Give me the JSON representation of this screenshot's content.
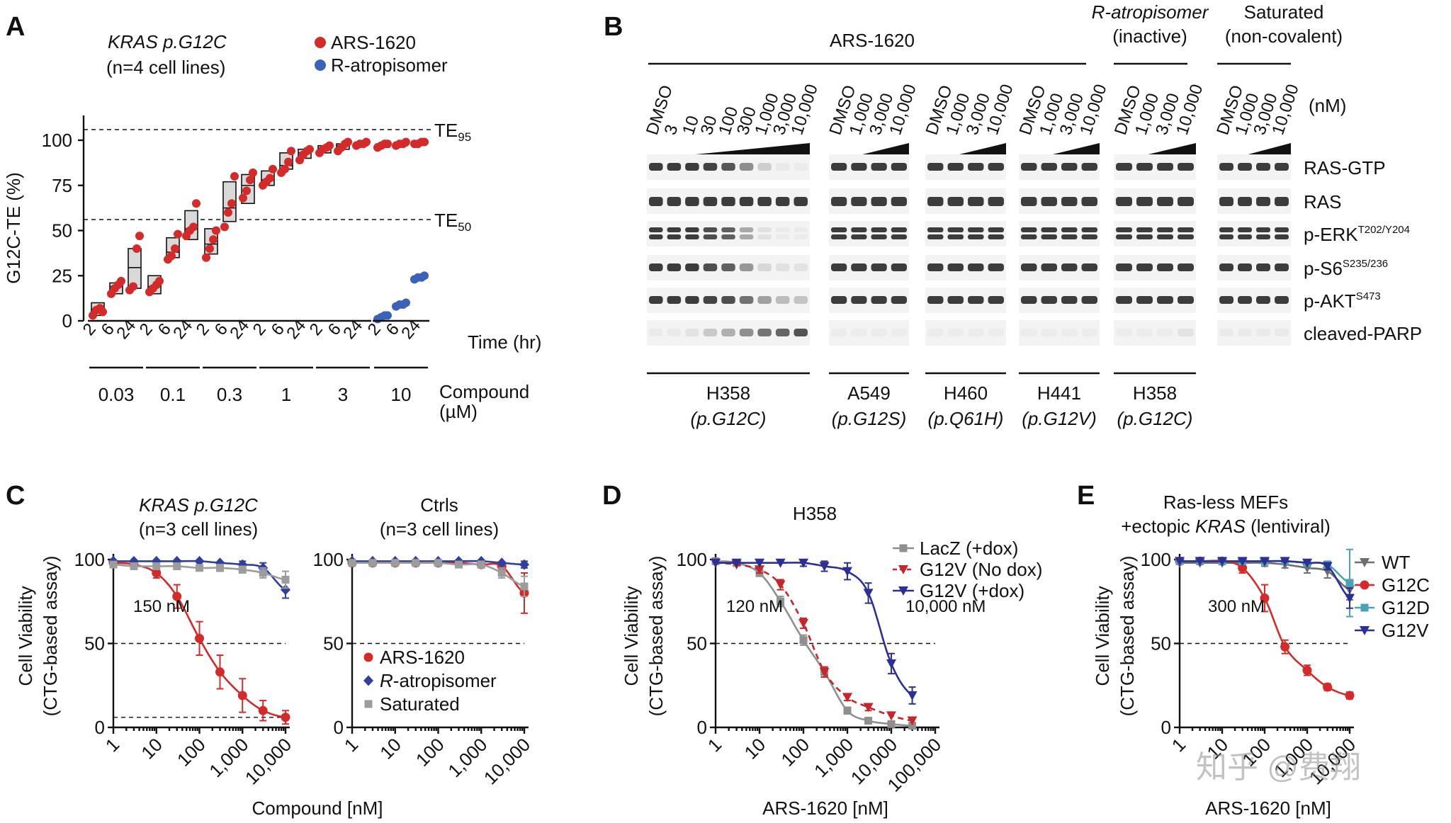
{
  "panel_labels": [
    "A",
    "B",
    "C",
    "D",
    "E"
  ],
  "colors": {
    "ars": "#d42a2a",
    "ratrop": "#3b62b8",
    "saturated": "#9c9c9c",
    "navy": "#2c2f96",
    "teal": "#4aa3b5",
    "wt": "#6e6e6e",
    "text": "#111111"
  },
  "panelA": {
    "title_line1": "KRAS p.G12C",
    "title_line2": "(n=4 cell lines)",
    "legend": [
      {
        "label": "ARS-1620",
        "color": "#d42a2a"
      },
      {
        "label": "R-atropisomer",
        "color": "#3b62b8"
      }
    ],
    "ylabel": "G12C-TE (%)",
    "yticks": [
      "0",
      "25",
      "50",
      "75",
      "100"
    ],
    "time_ticks": [
      "2",
      "6",
      "24"
    ],
    "time_label": "Time (hr)",
    "compound_label": "Compound",
    "compound_unit": "(µM)",
    "concentrations": [
      "0.03",
      "0.1",
      "0.3",
      "1",
      "3",
      "10"
    ],
    "te95": "TE95",
    "te50": "TE50"
  },
  "panelB": {
    "top_labels": [
      "ARS-1620",
      "R-atropisomer",
      "(inactive)",
      "Saturated",
      "(non-covalent)"
    ],
    "unit_label": "(nM)",
    "group_doses": [
      [
        "DMSO",
        "3",
        "10",
        "30",
        "100",
        "300",
        "1,000",
        "3,000",
        "10,000"
      ],
      [
        "DMSO",
        "1,000",
        "3,000",
        "10,000"
      ],
      [
        "DMSO",
        "1,000",
        "3,000",
        "10,000"
      ],
      [
        "DMSO",
        "1,000",
        "3,000",
        "10,000"
      ],
      [
        "DMSO",
        "1,000",
        "3,000",
        "10,000"
      ],
      [
        "DMSO",
        "1,000",
        "3,000",
        "10,000"
      ]
    ],
    "row_labels": [
      {
        "name": "RAS-GTP",
        "sup": ""
      },
      {
        "name": "RAS",
        "sup": ""
      },
      {
        "name": "p-ERK",
        "sup": "T202/Y204"
      },
      {
        "name": "p-S6",
        "sup": "S235/236"
      },
      {
        "name": "p-AKT",
        "sup": "S473"
      },
      {
        "name": "cleaved-PARP",
        "sup": ""
      }
    ],
    "bottom_labels": [
      {
        "line": "H358",
        "mut": "(p.G12C)"
      },
      {
        "line": "A549",
        "mut": "(p.G12S)"
      },
      {
        "line": "H460",
        "mut": "(p.Q61H)"
      },
      {
        "line": "H441",
        "mut": "(p.G12V)"
      },
      {
        "line": "H358",
        "mut": "(p.G12C)"
      }
    ]
  },
  "panelC": {
    "left_title_1": "KRAS p.G12C",
    "left_title_2": "(n=3 cell lines)",
    "right_title_1": "Ctrls",
    "right_title_2": "(n=3 cell lines)",
    "ylabel_1": "Cell Viability",
    "ylabel_2": "(CTG-based assay)",
    "xlabel": "Compound [nM]",
    "annotation": "150 nM",
    "xticks": [
      "1",
      "10",
      "100",
      "1,000",
      "10,000"
    ],
    "yticks": [
      "0",
      "50",
      "100"
    ],
    "legend": [
      "ARS-1620",
      "R-atropisomer",
      "Saturated"
    ]
  },
  "panelD": {
    "title": "H358",
    "ylabel_1": "Cell Viability",
    "ylabel_2": "(CTG-based assay)",
    "xlabel": "ARS-1620 [nM]",
    "xticks": [
      "1",
      "10",
      "100",
      "1,000",
      "10,000",
      "100,000"
    ],
    "yticks": [
      "0",
      "50",
      "100"
    ],
    "annotation_left": "120 nM",
    "annotation_right": "10,000 nM",
    "legend": [
      "LacZ (+dox)",
      "G12V (No dox)",
      "G12V (+dox)"
    ]
  },
  "panelE": {
    "title_1": "Ras-less MEFs",
    "title_2_pre": "+ectopic ",
    "title_2_gene": "KRAS",
    "title_2_post": " (lentiviral)",
    "ylabel_1": "Cell Viability",
    "ylabel_2": "(CTG-based assay)",
    "xlabel": "ARS-1620 [nM]",
    "xticks": [
      "1",
      "10",
      "100",
      "1,000",
      "10,000"
    ],
    "yticks": [
      "0",
      "50",
      "100"
    ],
    "annotation": "300 nM",
    "legend": [
      "WT",
      "G12C",
      "G12D",
      "G12V"
    ]
  },
  "watermark": "知乎 @费翔",
  "chart_data": [
    {
      "type": "scatter",
      "panel": "A",
      "ylabel": "G12C-TE (%)",
      "xlabel": "Time (hr)",
      "ylim": [
        0,
        100
      ],
      "series": [
        {
          "name": "ARS-1620",
          "groups": [
            {
              "conc_uM": 0.03,
              "time_hr": 2,
              "points": [
                3,
                6,
                7,
                5
              ],
              "box": [
                3,
                10
              ]
            },
            {
              "conc_uM": 0.03,
              "time_hr": 6,
              "points": [
                15,
                18,
                20,
                22
              ],
              "box": [
                15,
                21
              ]
            },
            {
              "conc_uM": 0.03,
              "time_hr": 24,
              "points": [
                17,
                19,
                40,
                47
              ],
              "box": [
                18,
                40
              ]
            },
            {
              "conc_uM": 0.1,
              "time_hr": 2,
              "points": [
                16,
                18,
                20,
                22
              ],
              "box": [
                15,
                25
              ]
            },
            {
              "conc_uM": 0.1,
              "time_hr": 6,
              "points": [
                34,
                36,
                40,
                48
              ],
              "box": [
                35,
                46
              ]
            },
            {
              "conc_uM": 0.1,
              "time_hr": 24,
              "points": [
                47,
                50,
                52,
                65
              ],
              "box": [
                45,
                61
              ]
            },
            {
              "conc_uM": 0.3,
              "time_hr": 2,
              "points": [
                35,
                40,
                45,
                50
              ],
              "box": [
                37,
                51
              ]
            },
            {
              "conc_uM": 0.3,
              "time_hr": 6,
              "points": [
                52,
                60,
                65,
                80
              ],
              "box": [
                55,
                77
              ]
            },
            {
              "conc_uM": 0.3,
              "time_hr": 24,
              "points": [
                68,
                72,
                78,
                82
              ],
              "box": [
                65,
                81
              ]
            },
            {
              "conc_uM": 1,
              "time_hr": 2,
              "points": [
                75,
                77,
                79,
                84
              ],
              "box": [
                75,
                83
              ]
            },
            {
              "conc_uM": 1,
              "time_hr": 6,
              "points": [
                82,
                84,
                88,
                94
              ],
              "box": [
                84,
                93
              ]
            },
            {
              "conc_uM": 1,
              "time_hr": 24,
              "points": [
                89,
                92,
                94,
                95
              ],
              "box": [
                90,
                95
              ]
            },
            {
              "conc_uM": 3,
              "time_hr": 2,
              "points": [
                93,
                95,
                96,
                97
              ],
              "box": [
                93,
                97
              ]
            },
            {
              "conc_uM": 3,
              "time_hr": 6,
              "points": [
                94,
                96,
                98,
                99
              ],
              "box": [
                95,
                98
              ]
            },
            {
              "conc_uM": 3,
              "time_hr": 24,
              "points": [
                97,
                98,
                98,
                99
              ],
              "box": [
                97,
                99
              ]
            },
            {
              "conc_uM": 10,
              "time_hr": 2,
              "points": [
                96,
                97,
                98,
                98
              ],
              "box": [
                96,
                98
              ]
            },
            {
              "conc_uM": 10,
              "time_hr": 6,
              "points": [
                97,
                98,
                98,
                99
              ],
              "box": [
                97,
                99
              ]
            },
            {
              "conc_uM": 10,
              "time_hr": 24,
              "points": [
                98,
                98,
                99,
                99
              ],
              "box": [
                98,
                99
              ]
            }
          ]
        },
        {
          "name": "R-atropisomer",
          "groups": [
            {
              "conc_uM": 10,
              "time_hr": 2,
              "points": [
                1,
                2,
                3,
                3
              ]
            },
            {
              "conc_uM": 10,
              "time_hr": 6,
              "points": [
                8,
                9,
                9,
                10
              ]
            },
            {
              "conc_uM": 10,
              "time_hr": 24,
              "points": [
                23,
                24,
                24,
                25
              ]
            }
          ]
        }
      ],
      "reference_lines": {
        "TE95": 95,
        "TE50": 50
      }
    },
    {
      "type": "line",
      "panel": "C-left",
      "xlabel": "Compound [nM]",
      "ylabel": "Cell Viability (CTG-based assay)",
      "xscale": "log",
      "xlim": [
        1,
        10000
      ],
      "ylim": [
        0,
        100
      ],
      "series": [
        {
          "name": "ARS-1620",
          "x": [
            1,
            3,
            10,
            30,
            100,
            300,
            1000,
            3000,
            10000
          ],
          "y": [
            98,
            97,
            92,
            78,
            53,
            33,
            19,
            10,
            6
          ],
          "err": [
            1,
            2,
            3,
            7,
            10,
            10,
            10,
            6,
            4
          ]
        },
        {
          "name": "R-atropisomer",
          "x": [
            1,
            3,
            10,
            30,
            100,
            300,
            1000,
            3000,
            10000
          ],
          "y": [
            99,
            99,
            99,
            99,
            99,
            98,
            97,
            95,
            82
          ],
          "err": [
            1,
            1,
            1,
            1,
            1,
            1,
            2,
            3,
            5
          ]
        },
        {
          "name": "Saturated",
          "x": [
            1,
            3,
            10,
            30,
            100,
            300,
            1000,
            3000,
            10000
          ],
          "y": [
            97,
            96,
            96,
            96,
            95,
            95,
            94,
            92,
            88
          ],
          "err": [
            1,
            1,
            1,
            1,
            1,
            2,
            2,
            3,
            5
          ]
        }
      ]
    },
    {
      "type": "line",
      "panel": "C-right",
      "xscale": "log",
      "xlim": [
        1,
        10000
      ],
      "ylim": [
        0,
        100
      ],
      "series": [
        {
          "name": "ARS-1620",
          "x": [
            1,
            3,
            10,
            30,
            100,
            300,
            1000,
            3000,
            10000
          ],
          "y": [
            98,
            98,
            98,
            98,
            98,
            98,
            97,
            96,
            80
          ],
          "err": [
            1,
            1,
            1,
            1,
            1,
            1,
            1,
            2,
            12
          ]
        },
        {
          "name": "R-atropisomer",
          "x": [
            1,
            3,
            10,
            30,
            100,
            300,
            1000,
            3000,
            10000
          ],
          "y": [
            99,
            99,
            99,
            99,
            99,
            99,
            99,
            98,
            97
          ],
          "err": [
            1,
            1,
            1,
            1,
            1,
            1,
            1,
            1,
            2
          ]
        },
        {
          "name": "Saturated",
          "x": [
            1,
            3,
            10,
            30,
            100,
            300,
            1000,
            3000,
            10000
          ],
          "y": [
            98,
            98,
            98,
            98,
            98,
            97,
            97,
            92,
            84
          ],
          "err": [
            1,
            1,
            1,
            1,
            1,
            1,
            2,
            3,
            6
          ]
        }
      ]
    },
    {
      "type": "line",
      "panel": "D",
      "title": "H358",
      "xlabel": "ARS-1620 [nM]",
      "ylabel": "Cell Viability (CTG-based assay)",
      "xscale": "log",
      "xlim": [
        1,
        100000
      ],
      "ylim": [
        0,
        100
      ],
      "series": [
        {
          "name": "LacZ (+dox)",
          "x": [
            1,
            3,
            10,
            30,
            100,
            300,
            1000,
            3000,
            10000,
            30000
          ],
          "y": [
            99,
            98,
            92,
            75,
            52,
            33,
            10,
            4,
            2,
            1
          ],
          "err": [
            1,
            1,
            2,
            3,
            3,
            3,
            2,
            1,
            1,
            1
          ]
        },
        {
          "name": "G12V (No dox)",
          "x": [
            1,
            3,
            10,
            30,
            100,
            300,
            1000,
            3000,
            10000,
            30000
          ],
          "y": [
            98,
            97,
            94,
            85,
            62,
            33,
            18,
            12,
            7,
            4
          ],
          "err": [
            1,
            1,
            2,
            3,
            3,
            3,
            2,
            2,
            1,
            1
          ]
        },
        {
          "name": "G12V (+dox)",
          "x": [
            1,
            3,
            10,
            30,
            100,
            300,
            1000,
            3000,
            10000,
            30000
          ],
          "y": [
            98,
            98,
            98,
            98,
            98,
            96,
            93,
            80,
            38,
            19
          ],
          "err": [
            1,
            1,
            1,
            1,
            2,
            3,
            5,
            6,
            6,
            5
          ]
        }
      ]
    },
    {
      "type": "line",
      "panel": "E",
      "title": "Ras-less MEFs +ectopic KRAS (lentiviral)",
      "xlabel": "ARS-1620 [nM]",
      "ylabel": "Cell Viability (CTG-based assay)",
      "xscale": "log",
      "xlim": [
        1,
        10000
      ],
      "ylim": [
        0,
        100
      ],
      "series": [
        {
          "name": "WT",
          "x": [
            1,
            3,
            10,
            30,
            100,
            300,
            1000,
            3000,
            10000
          ],
          "y": [
            98,
            98,
            98,
            98,
            98,
            97,
            95,
            93,
            82
          ],
          "err": [
            1,
            1,
            1,
            1,
            2,
            2,
            3,
            4,
            6
          ]
        },
        {
          "name": "G12C",
          "x": [
            1,
            3,
            10,
            30,
            100,
            300,
            1000,
            3000,
            10000
          ],
          "y": [
            99,
            99,
            99,
            95,
            77,
            48,
            34,
            24,
            19
          ],
          "err": [
            1,
            1,
            1,
            3,
            8,
            4,
            3,
            2,
            2
          ]
        },
        {
          "name": "G12D",
          "x": [
            1,
            3,
            10,
            30,
            100,
            300,
            1000,
            3000,
            10000
          ],
          "y": [
            99,
            99,
            99,
            99,
            99,
            99,
            98,
            97,
            86
          ],
          "err": [
            1,
            1,
            2,
            1,
            1,
            1,
            1,
            2,
            20
          ]
        },
        {
          "name": "G12V",
          "x": [
            1,
            3,
            10,
            30,
            100,
            300,
            1000,
            3000,
            10000
          ],
          "y": [
            99,
            99,
            99,
            99,
            99,
            99,
            98,
            96,
            77
          ],
          "err": [
            1,
            1,
            1,
            1,
            1,
            1,
            1,
            2,
            6
          ]
        }
      ]
    }
  ]
}
